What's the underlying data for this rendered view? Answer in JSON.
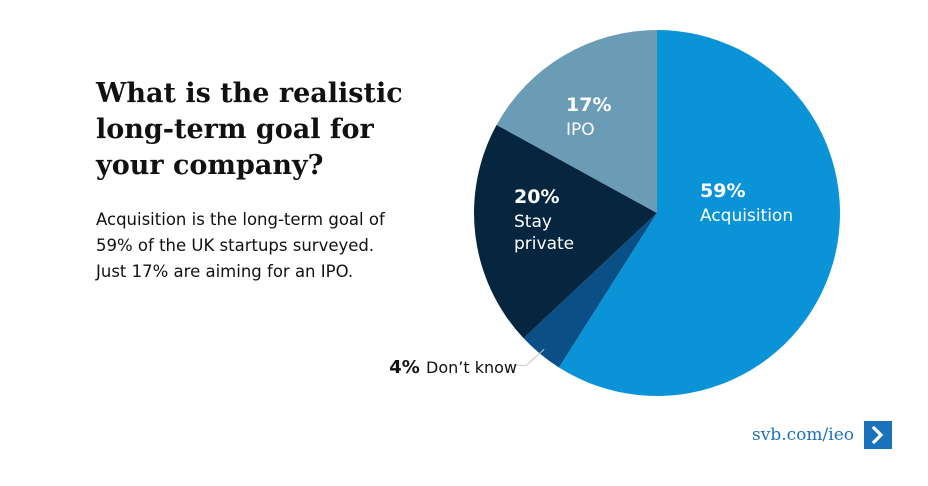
{
  "headline": {
    "line1": "What is the realistic",
    "line2": "long-term goal for",
    "line3": "your company?"
  },
  "subtext": {
    "line1": "Acquisition is the long-term goal of",
    "line2": "59% of the UK startups surveyed.",
    "line3": "Just 17% are aiming for an IPO."
  },
  "footer": {
    "link_text": "svb.com/ieo",
    "arrow_icon": "chevron-right-icon"
  },
  "colors": {
    "acquisition": "#0b93d8",
    "dont_know": "#0a4f86",
    "stay_private": "#06263f",
    "ipo": "#6b9cb6",
    "link": "#1a73ba"
  },
  "chart_data": {
    "type": "pie",
    "slices": [
      {
        "pct_label": "59%",
        "name_lines": [
          "Acquisition"
        ],
        "value": 59
      },
      {
        "pct_label": "4%",
        "name_lines": [
          "Don’t know"
        ],
        "value": 4
      },
      {
        "pct_label": "20%",
        "name_lines": [
          "Stay",
          "private"
        ],
        "value": 20
      },
      {
        "pct_label": "17%",
        "name_lines": [
          "IPO"
        ],
        "value": 17
      }
    ]
  }
}
